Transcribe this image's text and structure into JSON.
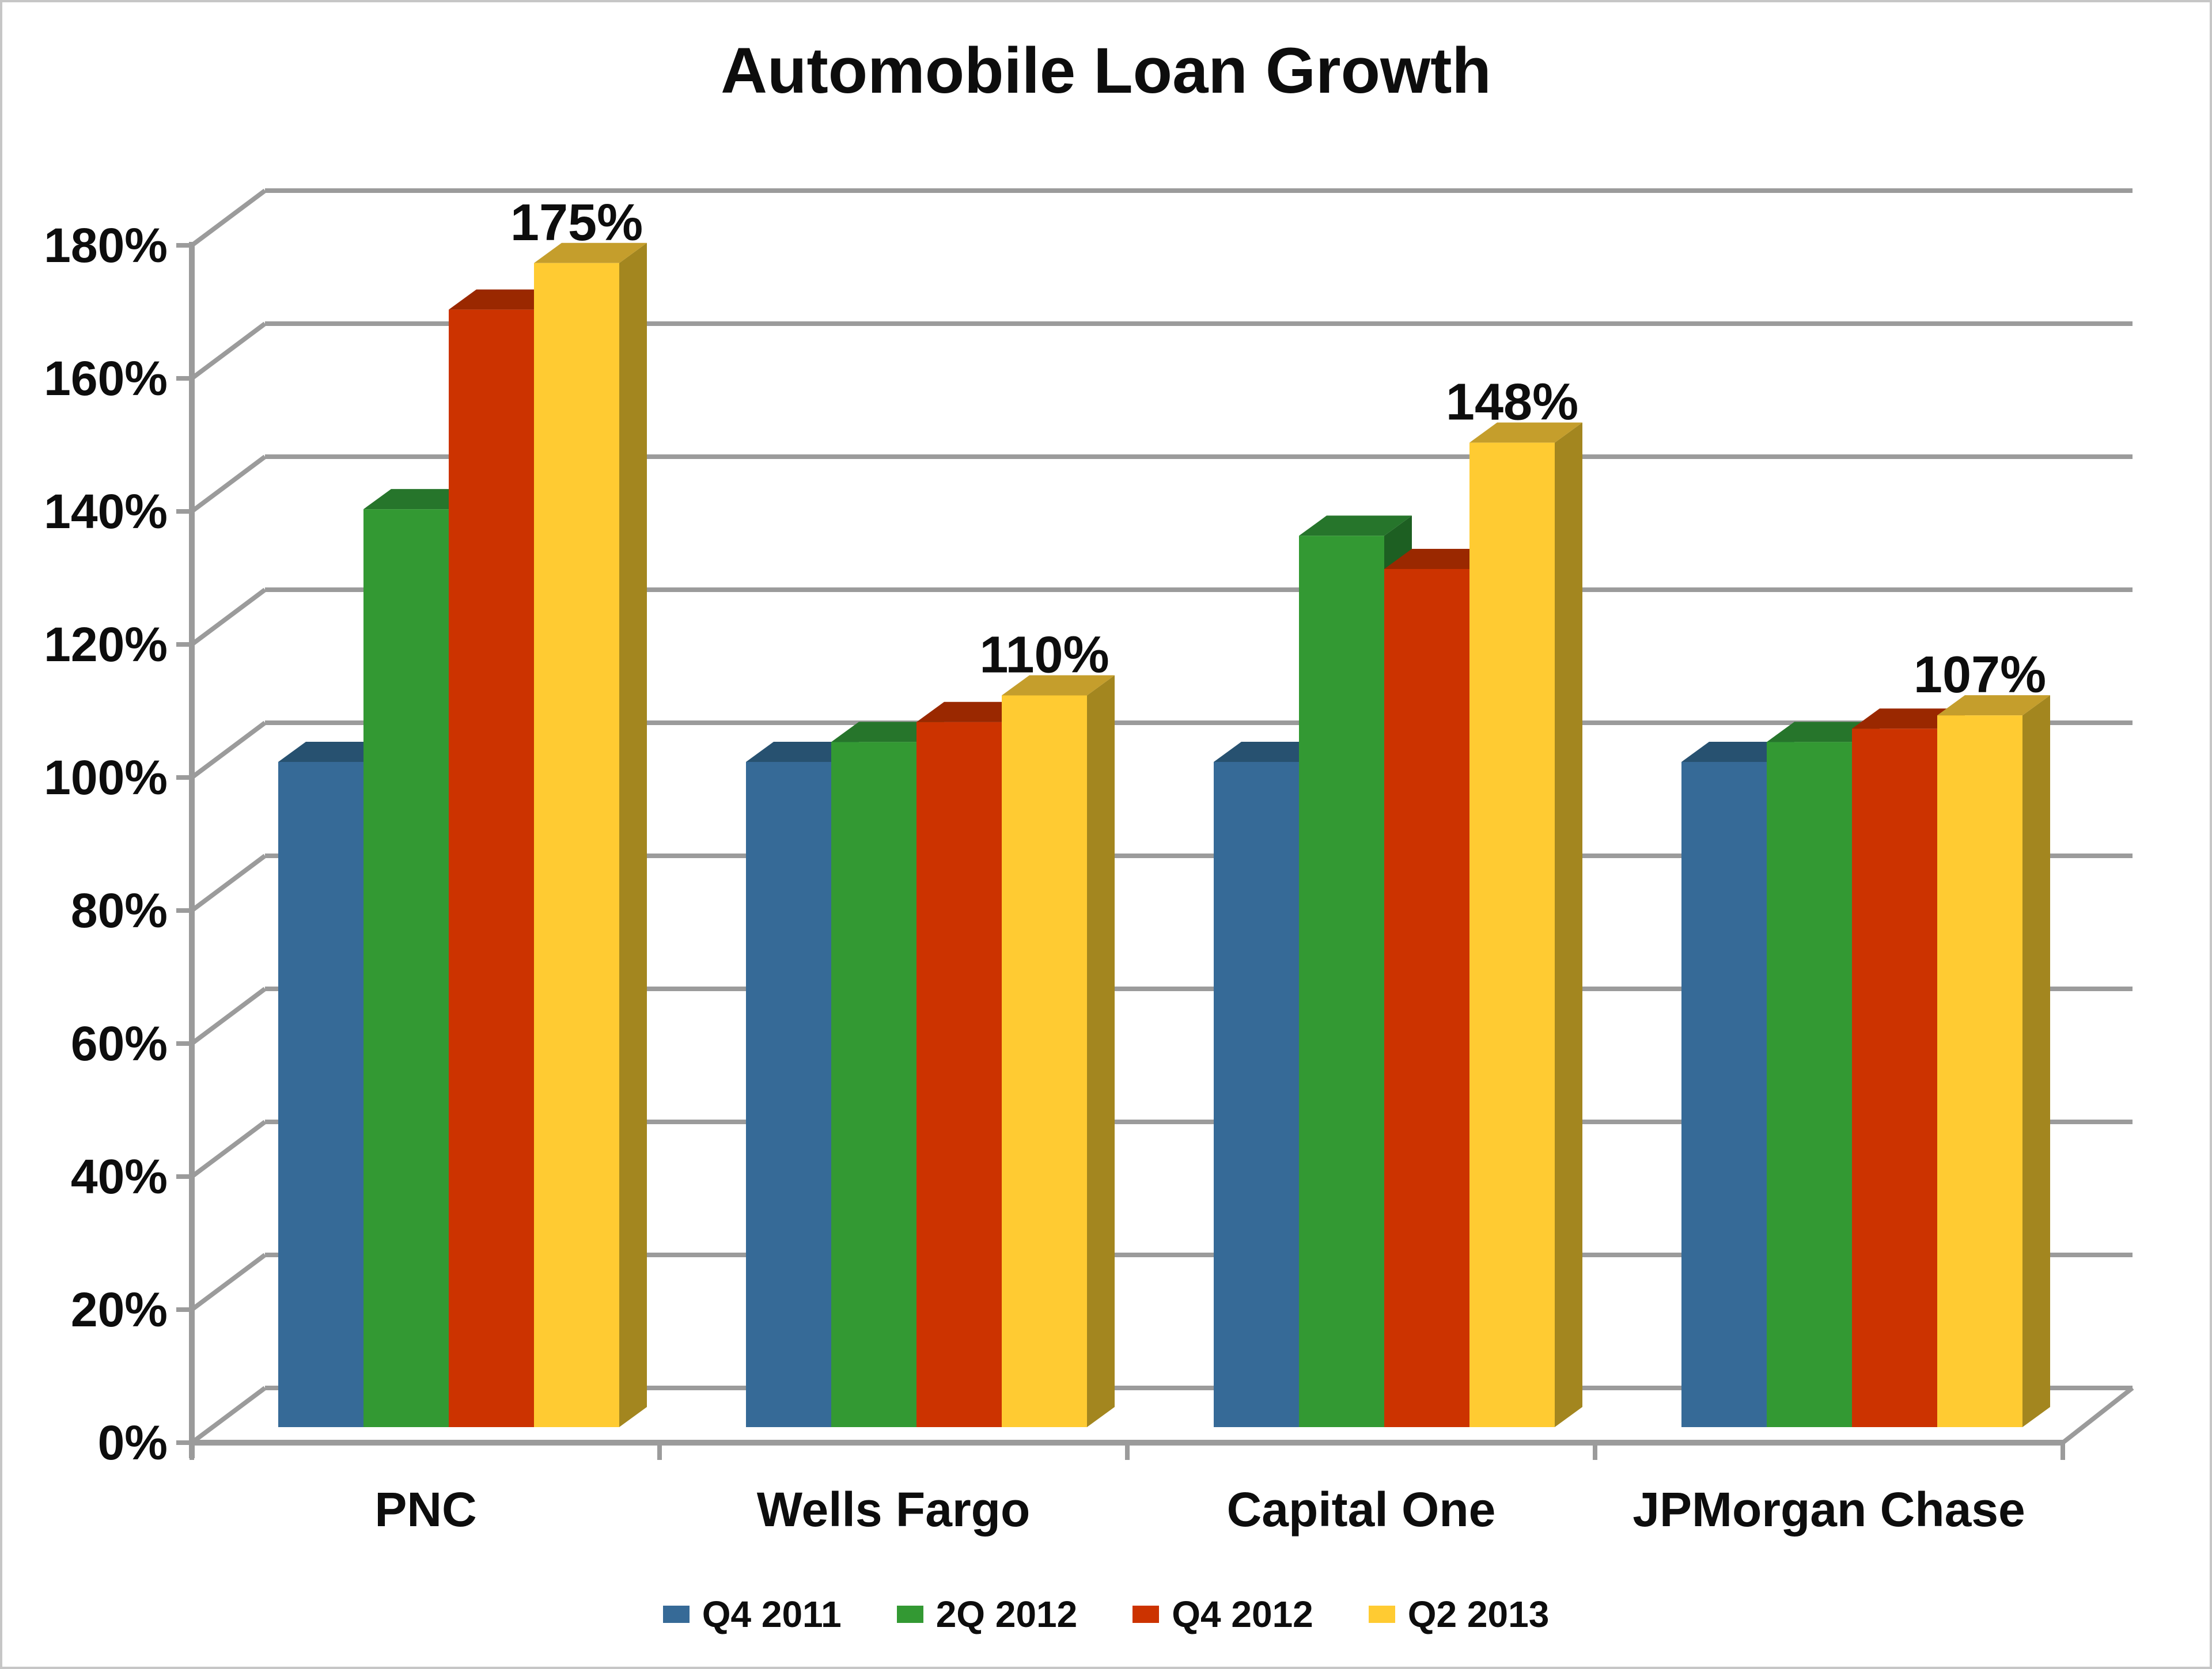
{
  "title": "Automobile Loan Growth",
  "chart_data": {
    "type": "bar",
    "style": "3d-clustered-column",
    "title": "Automobile Loan Growth",
    "categories": [
      "PNC",
      "Wells Fargo",
      "Capital One",
      "JPMorgan Chase"
    ],
    "series": [
      {
        "name": "Q4 2011",
        "values": [
          100,
          100,
          100,
          100
        ],
        "color": "#366A97",
        "top_color": "#275170",
        "side_color": "#234E6A"
      },
      {
        "name": "2Q 2012",
        "values": [
          138,
          103,
          134,
          103
        ],
        "color": "#339933",
        "top_color": "#26752B",
        "side_color": "#1D5F22"
      },
      {
        "name": "Q4 2012",
        "values": [
          168,
          106,
          129,
          105
        ],
        "color": "#CC3300",
        "top_color": "#9A2800",
        "side_color": "#872300"
      },
      {
        "name": "Q2 2013",
        "values": [
          175,
          110,
          148,
          107
        ],
        "color": "#FFCB32",
        "top_color": "#C59E2C",
        "side_color": "#A3861F"
      }
    ],
    "data_labels": [
      {
        "category_index": 0,
        "series_index": 3,
        "text": "175%"
      },
      {
        "category_index": 1,
        "series_index": 3,
        "text": "110%"
      },
      {
        "category_index": 2,
        "series_index": 3,
        "text": "148%"
      },
      {
        "category_index": 3,
        "series_index": 3,
        "text": "107%"
      }
    ],
    "y_axis": {
      "min": 0,
      "max": 180,
      "step": 20,
      "format": "percent",
      "tick_labels": [
        "0%",
        "20%",
        "40%",
        "60%",
        "80%",
        "100%",
        "120%",
        "140%",
        "160%",
        "180%"
      ]
    },
    "legend": {
      "position": "bottom",
      "entries": [
        "Q4 2011",
        "2Q 2012",
        "Q4 2012",
        "Q2 2013"
      ]
    },
    "grid": true,
    "gridline_color": "#9B9B9B",
    "text_color": "#0D0D0D",
    "background_color": "#FFFFFF"
  }
}
